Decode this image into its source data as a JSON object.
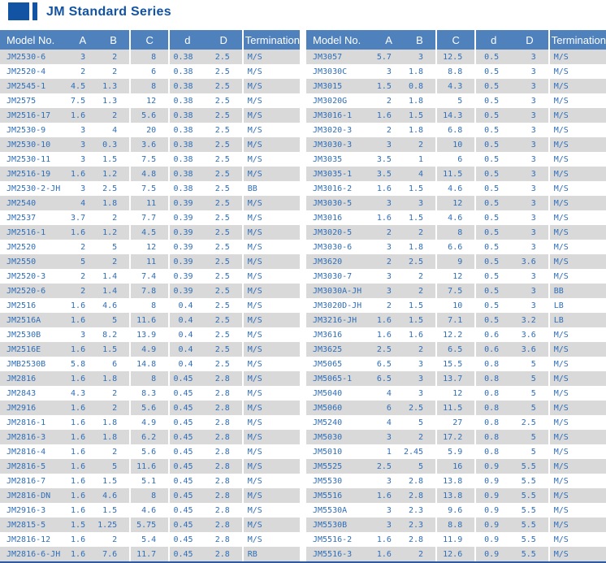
{
  "title": {
    "text": "JM Standard Series"
  },
  "colors": {
    "title_blue": "#1253a4",
    "header_bg": "#4f81bd",
    "header_text": "#ffffff",
    "cell_text": "#2f6eb8",
    "row_alt_bg": "#d9d9d9",
    "bottom_line": "#2b5ca8"
  },
  "columns": [
    "Model No.",
    "A",
    "B",
    "C",
    "d",
    "D",
    "Termination"
  ],
  "tables": [
    {
      "name": "left",
      "rows": [
        [
          "JM2530-6",
          "3",
          "2",
          "8",
          "0.38",
          "2.5",
          "M/S"
        ],
        [
          "JM2520-4",
          "2",
          "2",
          "6",
          "0.38",
          "2.5",
          "M/S"
        ],
        [
          "JM2545-1",
          "4.5",
          "1.3",
          "8",
          "0.38",
          "2.5",
          "M/S"
        ],
        [
          "JM2575",
          "7.5",
          "1.3",
          "12",
          "0.38",
          "2.5",
          "M/S"
        ],
        [
          "JM2516-17",
          "1.6",
          "2",
          "5.6",
          "0.38",
          "2.5",
          "M/S"
        ],
        [
          "JM2530-9",
          "3",
          "4",
          "20",
          "0.38",
          "2.5",
          "M/S"
        ],
        [
          "JM2530-10",
          "3",
          "0.3",
          "3.6",
          "0.38",
          "2.5",
          "M/S"
        ],
        [
          "JM2530-11",
          "3",
          "1.5",
          "7.5",
          "0.38",
          "2.5",
          "M/S"
        ],
        [
          "JM2516-19",
          "1.6",
          "1.2",
          "4.8",
          "0.38",
          "2.5",
          "M/S"
        ],
        [
          "JM2530-2-JH",
          "3",
          "2.5",
          "7.5",
          "0.38",
          "2.5",
          "BB"
        ],
        [
          "JM2540",
          "4",
          "1.8",
          "11",
          "0.39",
          "2.5",
          "M/S"
        ],
        [
          "JM2537",
          "3.7",
          "2",
          "7.7",
          "0.39",
          "2.5",
          "M/S"
        ],
        [
          "JM2516-1",
          "1.6",
          "1.2",
          "4.5",
          "0.39",
          "2.5",
          "M/S"
        ],
        [
          "JM2520",
          "2",
          "5",
          "12",
          "0.39",
          "2.5",
          "M/S"
        ],
        [
          "JM2550",
          "5",
          "2",
          "11",
          "0.39",
          "2.5",
          "M/S"
        ],
        [
          "JM2520-3",
          "2",
          "1.4",
          "7.4",
          "0.39",
          "2.5",
          "M/S"
        ],
        [
          "JM2520-6",
          "2",
          "1.4",
          "7.8",
          "0.39",
          "2.5",
          "M/S"
        ],
        [
          "JM2516",
          "1.6",
          "4.6",
          "8",
          "0.4",
          "2.5",
          "M/S"
        ],
        [
          "JM2516A",
          "1.6",
          "5",
          "11.6",
          "0.4",
          "2.5",
          "M/S"
        ],
        [
          "JM2530B",
          "3",
          "8.2",
          "13.9",
          "0.4",
          "2.5",
          "M/S"
        ],
        [
          "JM2516E",
          "1.6",
          "1.5",
          "4.9",
          "0.4",
          "2.5",
          "M/S"
        ],
        [
          "JMB2530B",
          "5.8",
          "6",
          "14.8",
          "0.4",
          "2.5",
          "M/S"
        ],
        [
          "JM2816",
          "1.6",
          "1.8",
          "8",
          "0.45",
          "2.8",
          "M/S"
        ],
        [
          "JM2843",
          "4.3",
          "2",
          "8.3",
          "0.45",
          "2.8",
          "M/S"
        ],
        [
          "JM2916",
          "1.6",
          "2",
          "5.6",
          "0.45",
          "2.8",
          "M/S"
        ],
        [
          "JM2816-1",
          "1.6",
          "1.8",
          "4.9",
          "0.45",
          "2.8",
          "M/S"
        ],
        [
          "JM2816-3",
          "1.6",
          "1.8",
          "6.2",
          "0.45",
          "2.8",
          "M/S"
        ],
        [
          "JM2816-4",
          "1.6",
          "2",
          "5.6",
          "0.45",
          "2.8",
          "M/S"
        ],
        [
          "JM2816-5",
          "1.6",
          "5",
          "11.6",
          "0.45",
          "2.8",
          "M/S"
        ],
        [
          "JM2816-7",
          "1.6",
          "1.5",
          "5.1",
          "0.45",
          "2.8",
          "M/S"
        ],
        [
          "JM2816-DN",
          "1.6",
          "4.6",
          "8",
          "0.45",
          "2.8",
          "M/S"
        ],
        [
          "JM2916-3",
          "1.6",
          "1.5",
          "4.6",
          "0.45",
          "2.8",
          "M/S"
        ],
        [
          "JM2815-5",
          "1.5",
          "1.25",
          "5.75",
          "0.45",
          "2.8",
          "M/S"
        ],
        [
          "JM2816-12",
          "1.6",
          "2",
          "5.4",
          "0.45",
          "2.8",
          "M/S"
        ],
        [
          "JM2816-6-JH",
          "1.6",
          "7.6",
          "11.7",
          "0.45",
          "2.8",
          "RB"
        ]
      ]
    },
    {
      "name": "right",
      "rows": [
        [
          "JM3057",
          "5.7",
          "3",
          "12.5",
          "0.5",
          "3",
          "M/S"
        ],
        [
          "JM3030C",
          "3",
          "1.8",
          "8.8",
          "0.5",
          "3",
          "M/S"
        ],
        [
          "JM3015",
          "1.5",
          "0.8",
          "4.3",
          "0.5",
          "3",
          "M/S"
        ],
        [
          "JM3020G",
          "2",
          "1.8",
          "5",
          "0.5",
          "3",
          "M/S"
        ],
        [
          "JM3016-1",
          "1.6",
          "1.5",
          "14.3",
          "0.5",
          "3",
          "M/S"
        ],
        [
          "JM3020-3",
          "2",
          "1.8",
          "6.8",
          "0.5",
          "3",
          "M/S"
        ],
        [
          "JM3030-3",
          "3",
          "2",
          "10",
          "0.5",
          "3",
          "M/S"
        ],
        [
          "JM3035",
          "3.5",
          "1",
          "6",
          "0.5",
          "3",
          "M/S"
        ],
        [
          "JM3035-1",
          "3.5",
          "4",
          "11.5",
          "0.5",
          "3",
          "M/S"
        ],
        [
          "JM3016-2",
          "1.6",
          "1.5",
          "4.6",
          "0.5",
          "3",
          "M/S"
        ],
        [
          "JM3030-5",
          "3",
          "3",
          "12",
          "0.5",
          "3",
          "M/S"
        ],
        [
          "JM3016",
          "1.6",
          "1.5",
          "4.6",
          "0.5",
          "3",
          "M/S"
        ],
        [
          "JM3020-5",
          "2",
          "2",
          "8",
          "0.5",
          "3",
          "M/S"
        ],
        [
          "JM3030-6",
          "3",
          "1.8",
          "6.6",
          "0.5",
          "3",
          "M/S"
        ],
        [
          "JM3620",
          "2",
          "2.5",
          "9",
          "0.5",
          "3.6",
          "M/S"
        ],
        [
          "JM3030-7",
          "3",
          "2",
          "12",
          "0.5",
          "3",
          "M/S"
        ],
        [
          "JM3030A-JH",
          "3",
          "2",
          "7.5",
          "0.5",
          "3",
          "BB"
        ],
        [
          "JM3020D-JH",
          "2",
          "1.5",
          "10",
          "0.5",
          "3",
          "LB"
        ],
        [
          "JM3216-JH",
          "1.6",
          "1.5",
          "7.1",
          "0.5",
          "3.2",
          "LB"
        ],
        [
          "JM3616",
          "1.6",
          "1.6",
          "12.2",
          "0.6",
          "3.6",
          "M/S"
        ],
        [
          "JM3625",
          "2.5",
          "2",
          "6.5",
          "0.6",
          "3.6",
          "M/S"
        ],
        [
          "JM5065",
          "6.5",
          "3",
          "15.5",
          "0.8",
          "5",
          "M/S"
        ],
        [
          "JM5065-1",
          "6.5",
          "3",
          "13.7",
          "0.8",
          "5",
          "M/S"
        ],
        [
          "JM5040",
          "4",
          "3",
          "12",
          "0.8",
          "5",
          "M/S"
        ],
        [
          "JM5060",
          "6",
          "2.5",
          "11.5",
          "0.8",
          "5",
          "M/S"
        ],
        [
          "JM5240",
          "4",
          "5",
          "27",
          "0.8",
          "2.5",
          "M/S"
        ],
        [
          "JM5030",
          "3",
          "2",
          "17.2",
          "0.8",
          "5",
          "M/S"
        ],
        [
          "JM5010",
          "1",
          "2.45",
          "5.9",
          "0.8",
          "5",
          "M/S"
        ],
        [
          "JM5525",
          "2.5",
          "5",
          "16",
          "0.9",
          "5.5",
          "M/S"
        ],
        [
          "JM5530",
          "3",
          "2.8",
          "13.8",
          "0.9",
          "5.5",
          "M/S"
        ],
        [
          "JM5516",
          "1.6",
          "2.8",
          "13.8",
          "0.9",
          "5.5",
          "M/S"
        ],
        [
          "JM5530A",
          "3",
          "2.3",
          "9.6",
          "0.9",
          "5.5",
          "M/S"
        ],
        [
          "JM5530B",
          "3",
          "2.3",
          "8.8",
          "0.9",
          "5.5",
          "M/S"
        ],
        [
          "JM5516-2",
          "1.6",
          "2.8",
          "11.9",
          "0.9",
          "5.5",
          "M/S"
        ],
        [
          "JM5516-3",
          "1.6",
          "2",
          "12.6",
          "0.9",
          "5.5",
          "M/S"
        ]
      ]
    }
  ]
}
